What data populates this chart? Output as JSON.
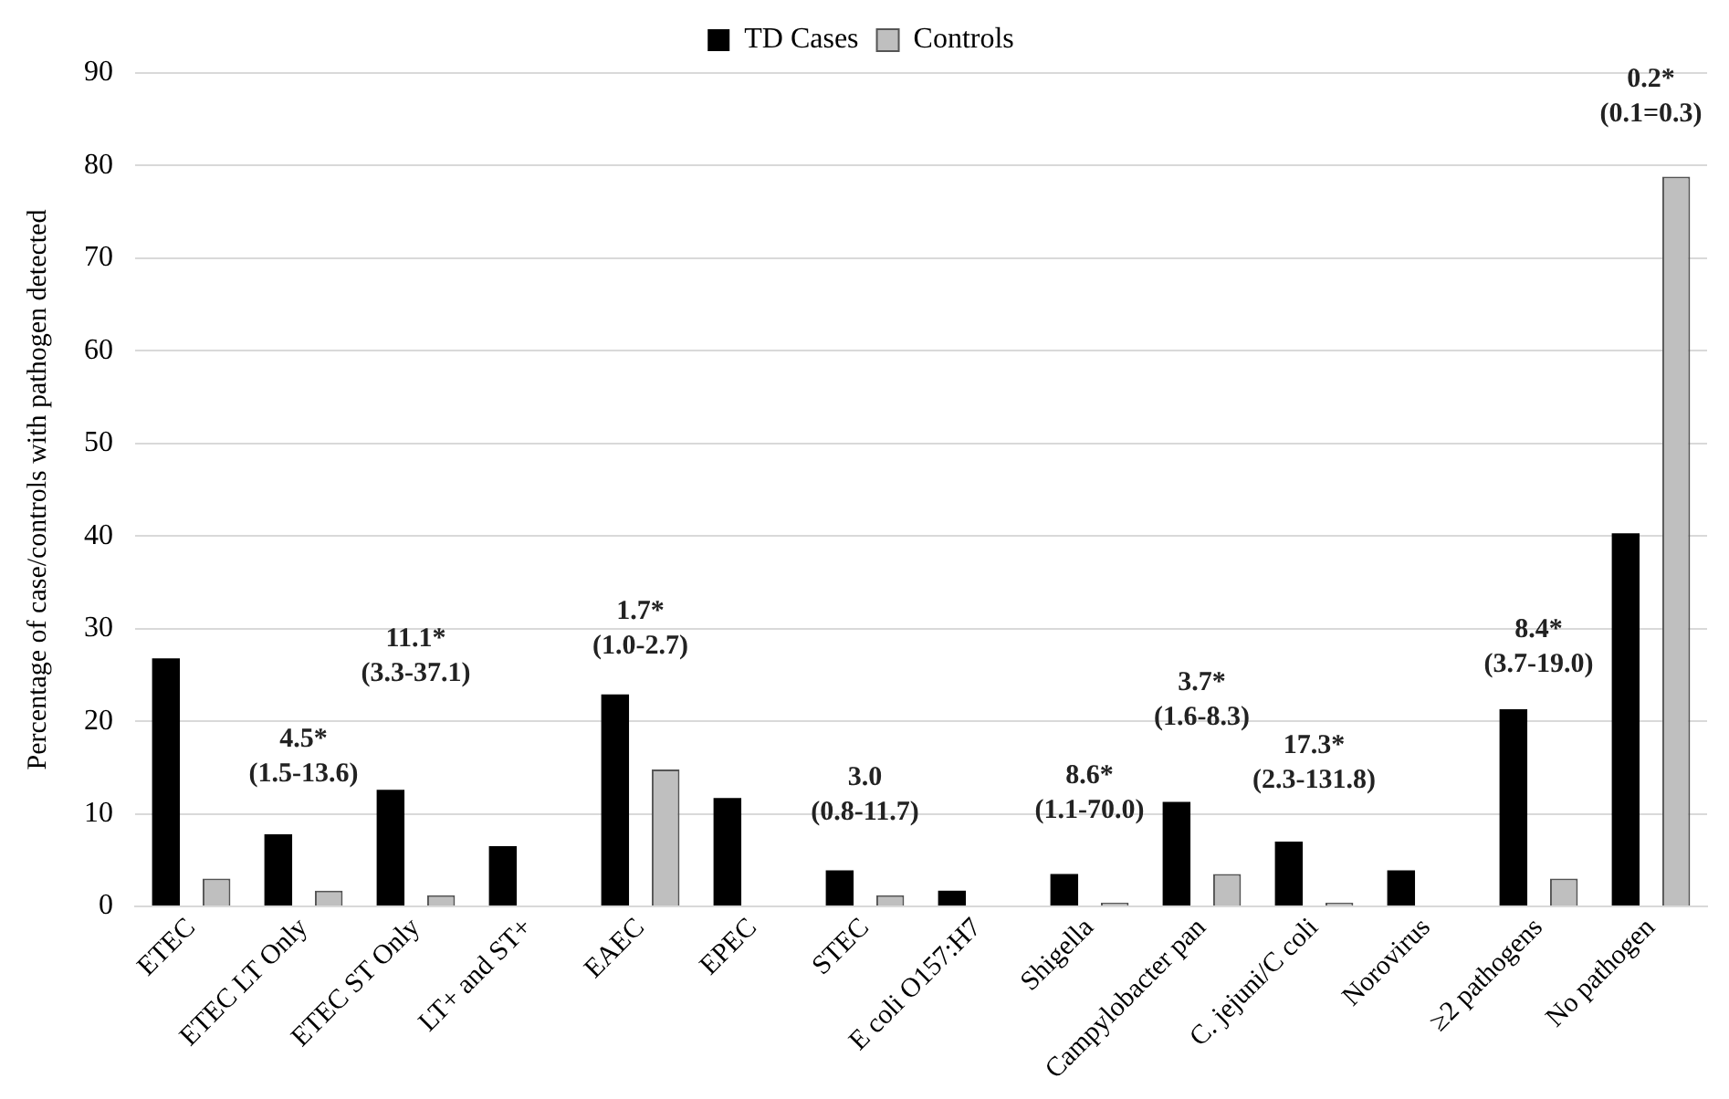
{
  "chart_data": {
    "type": "bar",
    "ylabel": "Percentage of case/controls with pathogen detected",
    "categories": [
      "ETEC",
      "ETEC LT Only",
      "ETEC ST Only",
      "LT+ and ST+",
      "EAEC",
      "EPEC",
      "STEC",
      "E coli O157:H7",
      "Shigella",
      "Campylobacter pan",
      "C. jejuni/C coli",
      "Norovirus",
      "≥2 pathogens",
      "No pathogen"
    ],
    "series": [
      {
        "name": "TD Cases",
        "color": "#000000",
        "values": [
          26.8,
          7.8,
          12.6,
          6.5,
          22.9,
          11.7,
          3.9,
          1.7,
          3.5,
          11.3,
          7.0,
          3.9,
          21.3,
          40.3
        ]
      },
      {
        "name": "Controls",
        "color": "#bfbfbf",
        "values": [
          3.0,
          1.7,
          1.2,
          null,
          14.8,
          null,
          1.2,
          null,
          0.4,
          3.5,
          0.4,
          null,
          3.0,
          78.8
        ]
      }
    ],
    "ylim": [
      0,
      90
    ],
    "yticks": [
      0,
      10,
      20,
      30,
      40,
      50,
      60,
      70,
      80,
      90
    ],
    "grid": "y",
    "legend": "top",
    "annotations": [
      "4.5*\n(1.5-13.6)",
      "11.1*\n(3.3-37.1)",
      "1.7*\n(1.0-2.7)",
      "3.0\n(0.8-11.7)",
      "8.6*\n(1.1-70.0)",
      "3.7*\n(1.6-8.3)",
      "17.3*\n(2.3-131.8)",
      "8.4*\n(3.7-19.0)",
      "0.2*\n(0.1=0.3)"
    ]
  }
}
